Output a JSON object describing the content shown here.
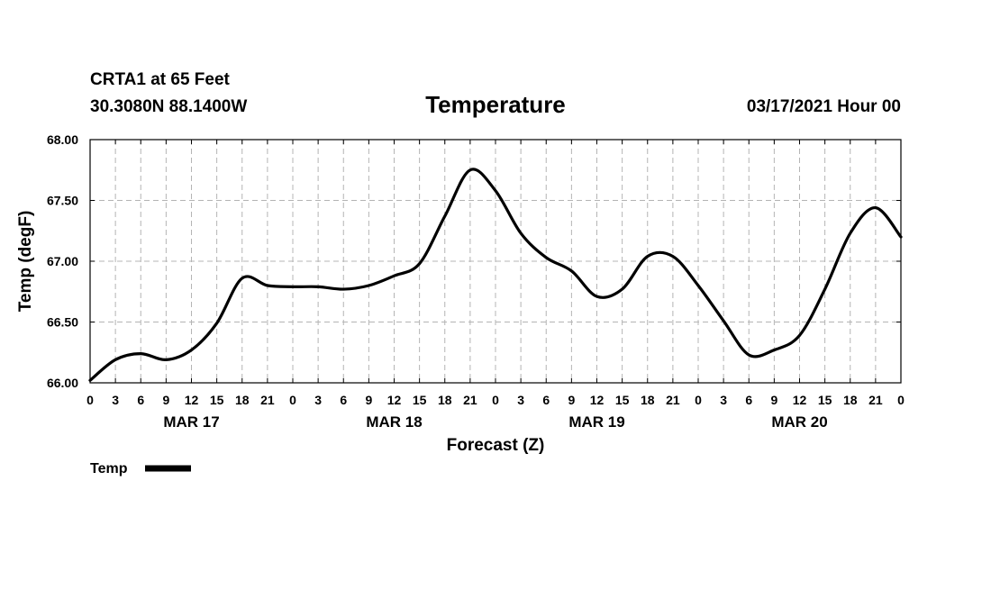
{
  "header": {
    "station": "CRTA1 at 65 Feet",
    "location": "30.3080N 88.1400W",
    "title": "Temperature",
    "issued": "03/17/2021 Hour 00"
  },
  "chart_data": {
    "type": "line",
    "xlabel": "Forecast (Z)",
    "ylabel": "Temp (degF)",
    "ylim": [
      66.0,
      68.0
    ],
    "xlim": [
      0,
      96
    ],
    "y_ticks": [
      "66.00",
      "66.50",
      "67.00",
      "67.50",
      "68.00"
    ],
    "x_tick_hours": [
      0,
      3,
      6,
      9,
      12,
      15,
      18,
      21,
      24,
      27,
      30,
      33,
      36,
      39,
      42,
      45,
      48,
      51,
      54,
      57,
      60,
      63,
      66,
      69,
      72,
      75,
      78,
      81,
      84,
      87,
      90,
      93,
      96
    ],
    "x_tick_labels": [
      "0",
      "3",
      "6",
      "9",
      "12",
      "15",
      "18",
      "21",
      "0",
      "3",
      "6",
      "9",
      "12",
      "15",
      "18",
      "21",
      "0",
      "3",
      "6",
      "9",
      "12",
      "15",
      "18",
      "21",
      "0",
      "3",
      "6",
      "9",
      "12",
      "15",
      "18",
      "21",
      "0"
    ],
    "day_labels": [
      {
        "hour": 12,
        "label": "MAR 17"
      },
      {
        "hour": 36,
        "label": "MAR 18"
      },
      {
        "hour": 60,
        "label": "MAR 19"
      },
      {
        "hour": 84,
        "label": "MAR 20"
      }
    ],
    "grid": true,
    "legend_position": "bottom-left",
    "series": [
      {
        "name": "Temp",
        "color": "#000000",
        "x": [
          0,
          3,
          6,
          9,
          12,
          15,
          18,
          21,
          24,
          27,
          30,
          33,
          36,
          39,
          42,
          45,
          48,
          51,
          54,
          57,
          60,
          63,
          66,
          69,
          72,
          75,
          78,
          81,
          84,
          87,
          90,
          93,
          96
        ],
        "y": [
          66.02,
          66.19,
          66.24,
          66.19,
          66.27,
          66.49,
          66.86,
          66.8,
          66.79,
          66.79,
          66.77,
          66.8,
          66.88,
          66.98,
          67.37,
          67.75,
          67.58,
          67.23,
          67.03,
          66.92,
          66.71,
          66.77,
          67.04,
          67.04,
          66.8,
          66.51,
          66.23,
          66.27,
          66.39,
          66.77,
          67.23,
          67.44,
          67.2
        ]
      }
    ]
  }
}
